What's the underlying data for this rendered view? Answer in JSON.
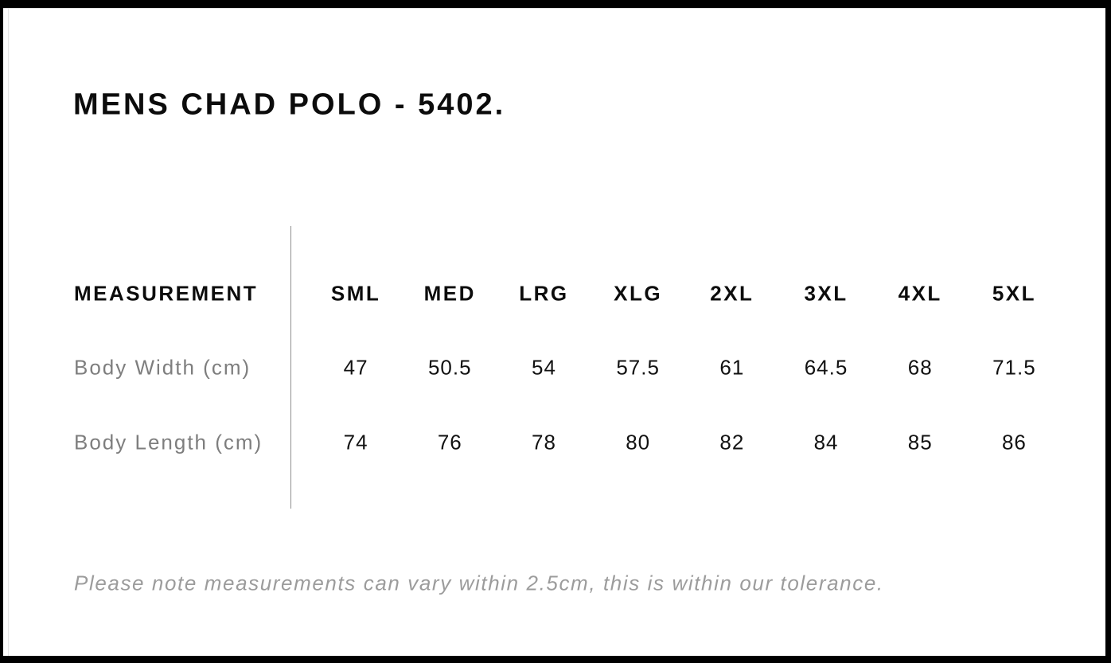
{
  "page": {
    "title": "MENS CHAD POLO - 5402.",
    "note": "Please note measurements can vary within 2.5cm, this is within our tolerance."
  },
  "colors": {
    "frame": "#000000",
    "page_background": "#ffffff",
    "heading_text": "#0c0c0c",
    "label_text": "#7e7e7e",
    "value_text": "#121212",
    "note_text": "#9c9c9c",
    "divider_line": "#8f8f8f"
  },
  "chart_data": {
    "type": "table",
    "title": "MENS CHAD POLO - 5402.",
    "columns": [
      "MEASUREMENT",
      "SML",
      "MED",
      "LRG",
      "XLG",
      "2XL",
      "3XL",
      "4XL",
      "5XL"
    ],
    "rows": [
      {
        "label": "Body Width (cm)",
        "values": [
          "47",
          "50.5",
          "54",
          "57.5",
          "61",
          "64.5",
          "68",
          "71.5"
        ]
      },
      {
        "label": "Body Length (cm)",
        "values": [
          "74",
          "76",
          "78",
          "80",
          "82",
          "84",
          "85",
          "86"
        ]
      }
    ],
    "note": "Please note measurements can vary within 2.5cm, this is within our tolerance.",
    "layout_hints": {
      "label_column_separated_by_vertical_rule": true,
      "horizontal_gridlines": false
    }
  }
}
